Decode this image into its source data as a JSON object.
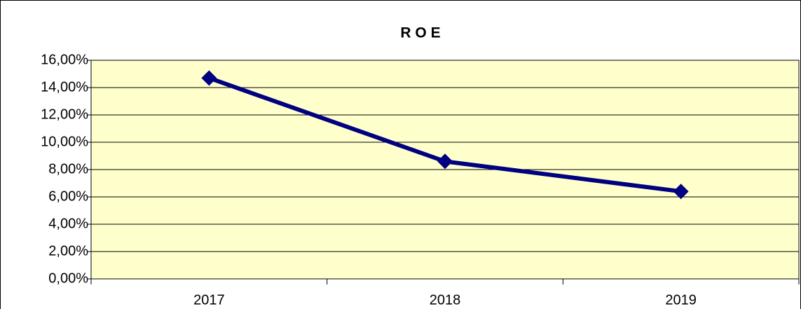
{
  "chart_data": {
    "type": "line",
    "title": "R O E",
    "categories": [
      "2017",
      "2018",
      "2019"
    ],
    "series": [
      {
        "name": "ROE",
        "color": "#000080",
        "values": [
          14.7,
          8.6,
          6.4
        ]
      }
    ],
    "ylim": [
      0,
      16
    ],
    "yticks": [
      {
        "value": 0,
        "label": "0,00%"
      },
      {
        "value": 2,
        "label": "2,00%"
      },
      {
        "value": 4,
        "label": "4,00%"
      },
      {
        "value": 6,
        "label": "6,00%"
      },
      {
        "value": 8,
        "label": "8,00%"
      },
      {
        "value": 10,
        "label": "10,00%"
      },
      {
        "value": 12,
        "label": "12,00%"
      },
      {
        "value": 14,
        "label": "14,00%"
      },
      {
        "value": 16,
        "label": "16,00%"
      }
    ],
    "grid": true,
    "plot_background": "#ffffcc"
  }
}
